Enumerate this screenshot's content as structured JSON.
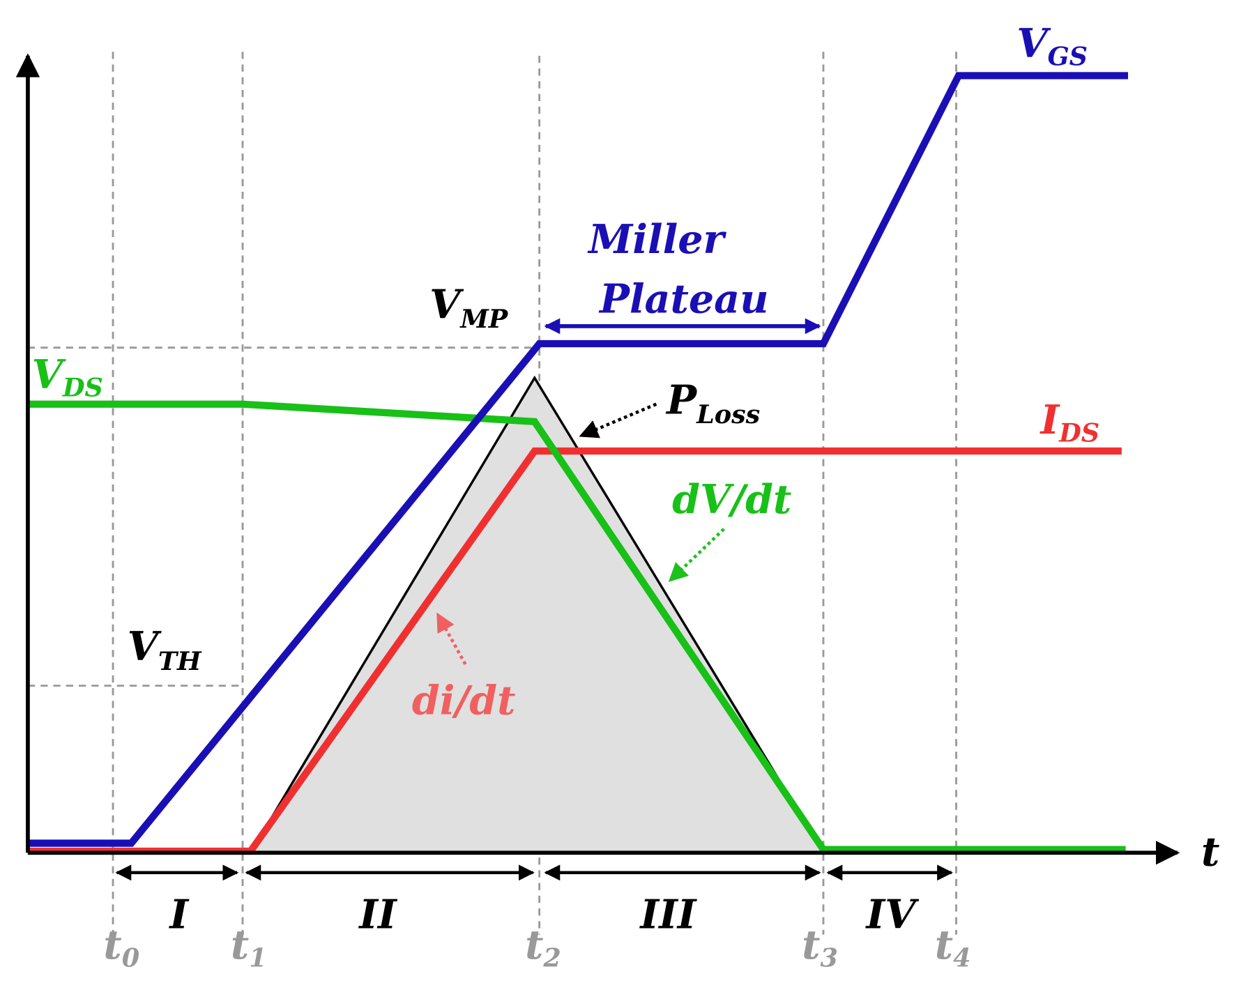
{
  "axes": {
    "time_label": "t"
  },
  "signals": {
    "vgs": {
      "main": "V",
      "sub": "GS"
    },
    "vds": {
      "main": "V",
      "sub": "DS"
    },
    "ids": {
      "main": "I",
      "sub": "DS"
    },
    "vmp": {
      "main": "V",
      "sub": "MP"
    },
    "vth": {
      "main": "V",
      "sub": "TH"
    },
    "ploss": {
      "main": "P",
      "sub": "Loss"
    }
  },
  "annotations": {
    "miller": [
      "Miller",
      "Plateau"
    ],
    "dv_dt": "dV/dt",
    "di_dt": "di/dt"
  },
  "time_marks": [
    {
      "main": "t",
      "sub": "0"
    },
    {
      "main": "t",
      "sub": "1"
    },
    {
      "main": "t",
      "sub": "2"
    },
    {
      "main": "t",
      "sub": "3"
    },
    {
      "main": "t",
      "sub": "4"
    }
  ],
  "regions": [
    "I",
    "II",
    "III",
    "IV"
  ]
}
